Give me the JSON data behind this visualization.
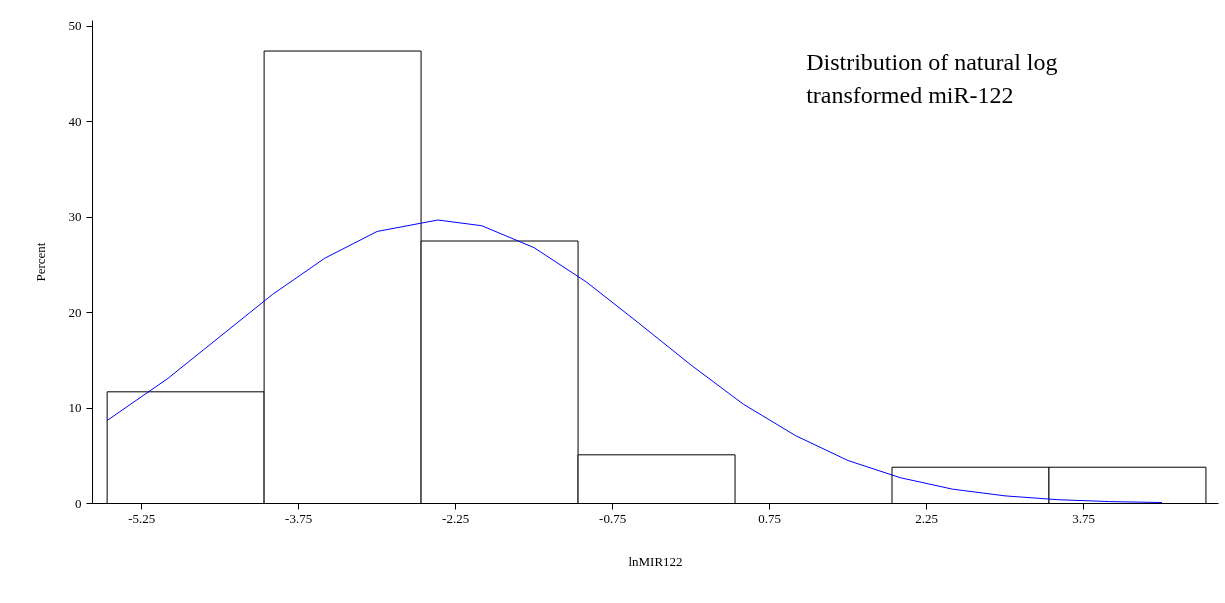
{
  "chart_data": {
    "type": "histogram",
    "xlabel": "lnMIR122",
    "ylabel": "Percent",
    "annotations": [
      "Distribution of natural log\ntransformed miR-122"
    ],
    "bins": [
      -5.58,
      -4.08,
      -2.58,
      -1.08,
      0.42,
      1.92,
      3.42,
      4.92
    ],
    "values": [
      11.7,
      47.4,
      27.5,
      5.1,
      0,
      3.8,
      3.8
    ],
    "color": "#000000",
    "series": [
      {
        "type": "line",
        "color": "#0000ff",
        "x": [
          -5.58,
          -5.0,
          -4.5,
          -4.0,
          -3.5,
          -3.0,
          -2.42,
          -2.0,
          -1.5,
          -1.0,
          -0.5,
          0.0,
          0.5,
          1.0,
          1.5,
          2.0,
          2.5,
          3.0,
          3.5,
          4.0,
          4.5
        ],
        "values": [
          8.7,
          13.1,
          17.5,
          21.9,
          25.7,
          28.5,
          29.7,
          29.1,
          26.8,
          23.2,
          18.9,
          14.5,
          10.4,
          7.1,
          4.5,
          2.7,
          1.5,
          0.8,
          0.4,
          0.2,
          0.1
        ]
      }
    ],
    "xlim": [
      -5.72,
      5.04
    ],
    "ylim": [
      0,
      50.6
    ],
    "xticks": [
      -5.25,
      -3.75,
      -2.25,
      -0.75,
      0.75,
      2.25,
      3.75
    ],
    "yticks": [
      0,
      10,
      20,
      30,
      40,
      50
    ],
    "grid": false
  }
}
